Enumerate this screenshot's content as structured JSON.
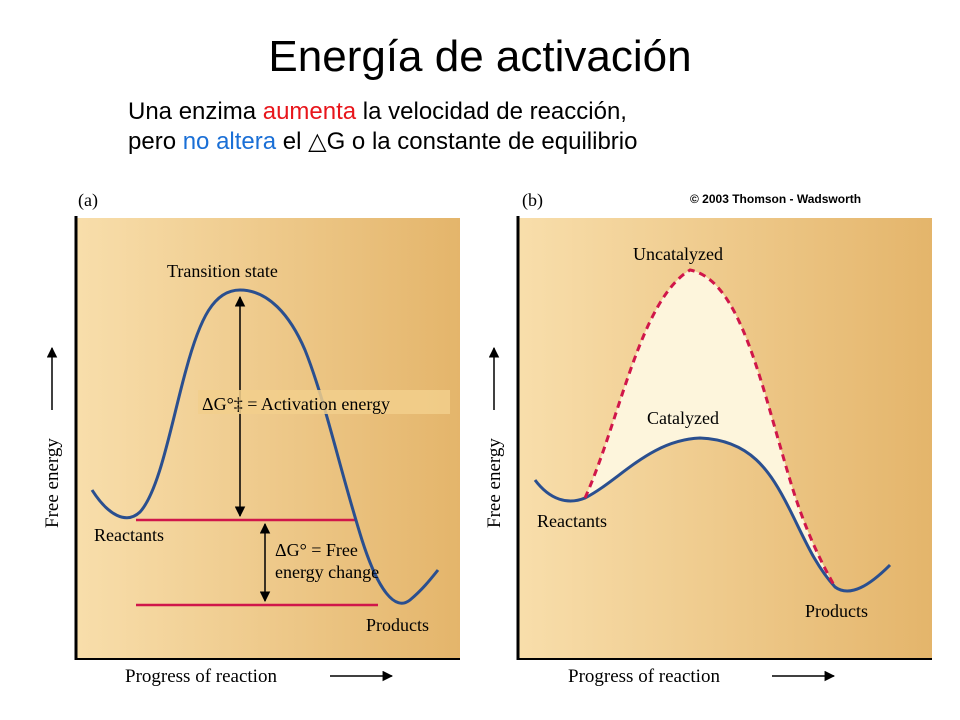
{
  "title": "Energía de activación",
  "subtitle": {
    "line1_a": "Una enzima ",
    "line1_red": "aumenta",
    "line1_b": " la velocidad de reacción,",
    "line2_a": "pero ",
    "line2_blue": "no altera",
    "line2_b": " el ",
    "line2_symbol": "△",
    "line2_c": "G o la constante de equilibrio"
  },
  "colors": {
    "red": "#e8151b",
    "blue": "#1a6fd6",
    "curve": "#2a4f8f",
    "level_line": "#d0164a",
    "panel": "#eec985"
  },
  "panel_a": {
    "label": "(a)",
    "y_axis": "Free energy",
    "x_axis": "Progress of reaction",
    "transition_state": "Transition state",
    "activation_energy": "ΔG°‡ = Activation energy",
    "free_energy_change_1": "ΔG° = Free",
    "free_energy_change_2": "energy change",
    "reactants": "Reactants",
    "products": "Products"
  },
  "panel_b": {
    "label": "(b)",
    "copyright": "© 2003 Thomson - Wadsworth",
    "y_axis": "Free energy",
    "x_axis": "Progress of reaction",
    "uncatalyzed": "Uncatalyzed",
    "catalyzed": "Catalyzed",
    "reactants": "Reactants",
    "products": "Products"
  }
}
